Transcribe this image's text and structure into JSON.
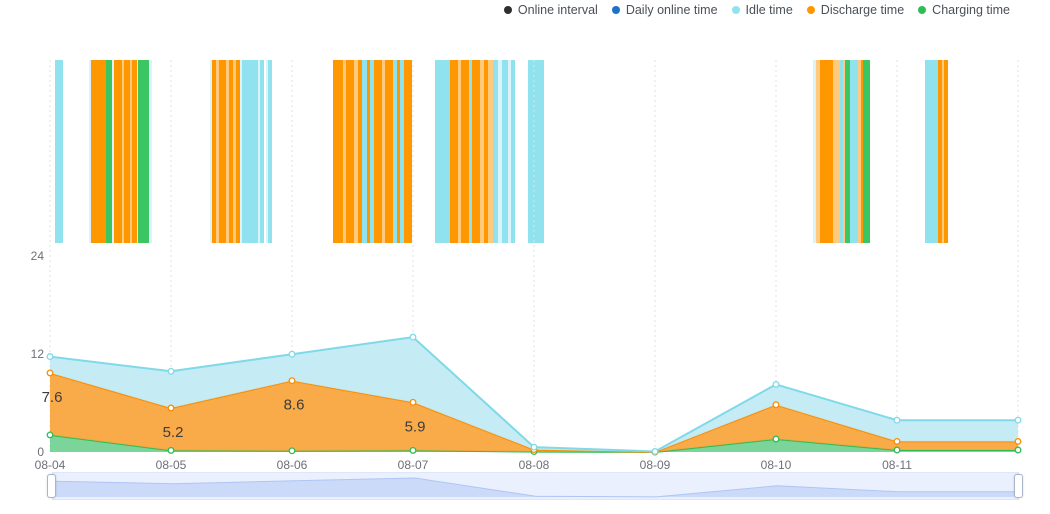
{
  "legend": {
    "items": [
      {
        "label": "Online interval",
        "color": "#2F2F2F"
      },
      {
        "label": "Daily online time",
        "color": "#1A73C8"
      },
      {
        "label": "Idle time",
        "color": "#8FE2EF"
      },
      {
        "label": "Discharge time",
        "color": "#FF9800"
      },
      {
        "label": "Charging time",
        "color": "#2FBD58"
      }
    ]
  },
  "chart_data": {
    "type": "area",
    "stacked": true,
    "title": "",
    "xlabel": "",
    "ylabel": "",
    "grid": "vertical-dashed",
    "legend_position": "top-right",
    "y_ticks": [
      0,
      12,
      24
    ],
    "ylim": [
      0,
      48
    ],
    "categories": [
      "08-04",
      "08-05",
      "08-06",
      "08-07",
      "08-08",
      "08-09",
      "08-10",
      "08-11",
      ""
    ],
    "series": [
      {
        "name": "Charging time",
        "line": "#2FBC55",
        "fill": "#74D294",
        "values": [
          2.1,
          0.2,
          0.15,
          0.2,
          0.05,
          0,
          1.6,
          0.25,
          0.25
        ]
      },
      {
        "name": "Discharge time",
        "line": "#FB8C00",
        "fill": "#FAA73F",
        "values": [
          7.6,
          5.2,
          8.6,
          5.9,
          0.25,
          0,
          4.2,
          1.05,
          1.05
        ],
        "point_labels": {
          "0": "7.6",
          "1": "5.2",
          "2": "8.6",
          "3": "5.9"
        }
      },
      {
        "name": "Idle time",
        "line": "#7FD9E8",
        "fill": "#C2EBF3",
        "values": [
          2.0,
          4.5,
          3.25,
          8.0,
          0.3,
          0.06,
          2.5,
          2.6,
          2.6
        ]
      }
    ]
  },
  "online_intervals": {
    "colors": {
      "o": "#FF9800",
      "ol": "#FFC97E",
      "c": "#8FE2EE",
      "pc": "#DAF4F9",
      "g": "#3CC563"
    },
    "stripes": [
      [
        55,
        8,
        "c"
      ],
      [
        89,
        2,
        "pc"
      ],
      [
        91,
        15,
        "o"
      ],
      [
        106,
        6,
        "g"
      ],
      [
        112,
        2,
        "pc"
      ],
      [
        114,
        8,
        "o"
      ],
      [
        122,
        2,
        "ol"
      ],
      [
        124,
        6,
        "o"
      ],
      [
        130,
        2,
        "ol"
      ],
      [
        132,
        5,
        "o"
      ],
      [
        137,
        1,
        "pc"
      ],
      [
        138,
        11,
        "g"
      ],
      [
        149,
        3,
        "pc"
      ],
      [
        210,
        2,
        "pc"
      ],
      [
        212,
        4,
        "o"
      ],
      [
        216,
        3,
        "ol"
      ],
      [
        219,
        7,
        "o"
      ],
      [
        226,
        3,
        "ol"
      ],
      [
        229,
        4,
        "o"
      ],
      [
        233,
        3,
        "ol"
      ],
      [
        236,
        4,
        "o"
      ],
      [
        240,
        2,
        "pc"
      ],
      [
        242,
        16,
        "c"
      ],
      [
        258,
        2,
        "pc"
      ],
      [
        260,
        4,
        "c"
      ],
      [
        266,
        2,
        "pc"
      ],
      [
        268,
        4,
        "c"
      ],
      [
        333,
        10,
        "o"
      ],
      [
        343,
        3,
        "ol"
      ],
      [
        346,
        8,
        "o"
      ],
      [
        354,
        4,
        "ol"
      ],
      [
        358,
        4,
        "o"
      ],
      [
        362,
        5,
        "c"
      ],
      [
        367,
        3,
        "o"
      ],
      [
        370,
        4,
        "c"
      ],
      [
        374,
        8,
        "o"
      ],
      [
        382,
        3,
        "ol"
      ],
      [
        385,
        8,
        "o"
      ],
      [
        393,
        4,
        "c"
      ],
      [
        397,
        3,
        "o"
      ],
      [
        400,
        4,
        "c"
      ],
      [
        404,
        8,
        "o"
      ],
      [
        435,
        15,
        "c"
      ],
      [
        450,
        8,
        "o"
      ],
      [
        458,
        3,
        "ol"
      ],
      [
        461,
        8,
        "o"
      ],
      [
        469,
        3,
        "c"
      ],
      [
        472,
        8,
        "o"
      ],
      [
        480,
        4,
        "ol"
      ],
      [
        484,
        4,
        "o"
      ],
      [
        488,
        5,
        "ol"
      ],
      [
        493,
        5,
        "c"
      ],
      [
        498,
        4,
        "pc"
      ],
      [
        502,
        6,
        "c"
      ],
      [
        508,
        3,
        "pc"
      ],
      [
        511,
        4,
        "c"
      ],
      [
        528,
        16,
        "c"
      ],
      [
        813,
        3,
        "pc"
      ],
      [
        816,
        4,
        "ol"
      ],
      [
        820,
        13,
        "o"
      ],
      [
        833,
        7,
        "ol"
      ],
      [
        840,
        3,
        "c"
      ],
      [
        843,
        2,
        "ol"
      ],
      [
        845,
        5,
        "g"
      ],
      [
        850,
        8,
        "c"
      ],
      [
        858,
        3,
        "ol"
      ],
      [
        861,
        2,
        "o"
      ],
      [
        863,
        7,
        "g"
      ],
      [
        925,
        13,
        "c"
      ],
      [
        938,
        4,
        "o"
      ],
      [
        942,
        2,
        "ol"
      ],
      [
        944,
        4,
        "o"
      ]
    ]
  }
}
